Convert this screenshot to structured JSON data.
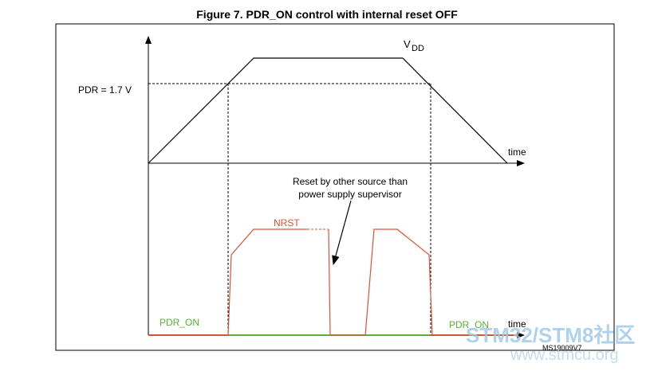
{
  "figure": {
    "title": "Figure 7. PDR_ON control with internal reset OFF",
    "code": "MS19009V7"
  },
  "top_graph": {
    "vdd": "V",
    "vdd_sub": "DD",
    "pdr_label": "PDR = 1.7 V",
    "time": "time"
  },
  "bottom_graph": {
    "annotation": [
      "Reset by other source than",
      "power supply supervisor"
    ],
    "nrst": "NRST",
    "pdr_on_left": "PDR_ON",
    "pdr_on_right": "PDR_ON",
    "time": "time"
  },
  "watermark": {
    "brand": "STM32/STM8社区",
    "url": "www.stmcu.org"
  }
}
